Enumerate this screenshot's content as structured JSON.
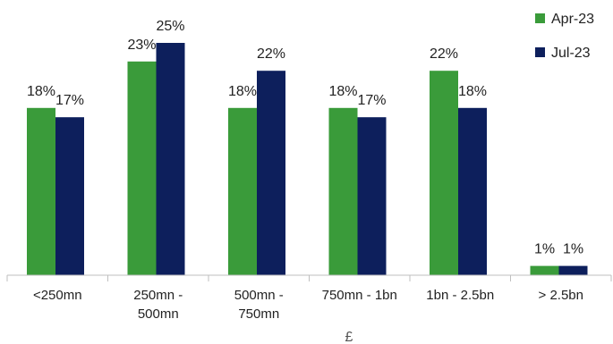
{
  "chart_data": {
    "type": "bar",
    "categories": [
      [
        "<250mn"
      ],
      [
        "250mn -",
        "500mn"
      ],
      [
        "500mn -",
        "750mn"
      ],
      [
        "750mn - 1bn"
      ],
      [
        "1bn - 2.5bn"
      ],
      [
        "> 2.5bn"
      ]
    ],
    "series": [
      {
        "name": "Apr-23",
        "color": "#3a9b3a",
        "values": [
          18,
          23,
          18,
          18,
          22,
          1
        ],
        "labels": [
          "18%",
          "23%",
          "18%",
          "18%",
          "22%",
          "1%"
        ]
      },
      {
        "name": "Jul-23",
        "color": "#0d1f5c",
        "values": [
          17,
          25,
          22,
          17,
          18,
          1
        ],
        "labels": [
          "17%",
          "25%",
          "22%",
          "17%",
          "18%",
          "1%"
        ]
      }
    ],
    "xlabel": "£",
    "ylabel": "",
    "ylim": [
      0,
      25
    ],
    "grid": false,
    "legend_position": "top-right"
  }
}
